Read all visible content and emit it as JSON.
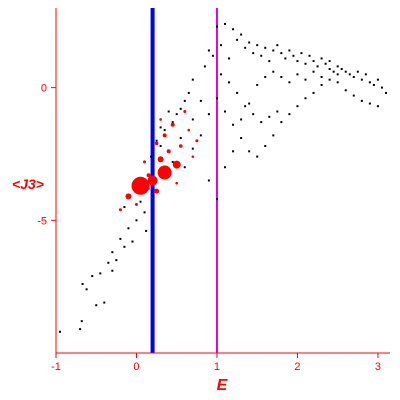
{
  "chart_data": {
    "type": "scatter",
    "title": "",
    "xlabel": "E",
    "ylabel": "<J3>",
    "xlim": [
      -1.0,
      3.15
    ],
    "ylim": [
      -10.0,
      3.0
    ],
    "xticks": [
      -1,
      0,
      1,
      2,
      3
    ],
    "yticks": [
      -5,
      0
    ],
    "vlines": [
      {
        "x": 0.2,
        "color": "#0000ff"
      },
      {
        "x": 1.0,
        "color": "#e000e0"
      }
    ],
    "series": [
      {
        "color": "#000000",
        "marker": "dot",
        "points": [
          [
            -0.95,
            -9.2
          ],
          [
            -0.7,
            -9.1
          ],
          [
            -0.68,
            -8.8
          ],
          [
            -0.67,
            -7.4
          ],
          [
            -0.62,
            -7.6
          ],
          [
            -0.55,
            -7.1
          ],
          [
            -0.5,
            -8.2
          ],
          [
            -0.45,
            -7.0
          ],
          [
            -0.4,
            -8.1
          ],
          [
            -0.35,
            -6.6
          ],
          [
            -0.3,
            -6.9
          ],
          [
            -0.3,
            -6.2
          ],
          [
            -0.25,
            -6.5
          ],
          [
            -0.2,
            -5.7
          ],
          [
            -0.15,
            -6.0
          ],
          [
            -0.15,
            -4.5
          ],
          [
            -0.1,
            -5.3
          ],
          [
            -0.05,
            -5.8
          ],
          [
            0.0,
            -5.0
          ],
          [
            0.05,
            -4.3
          ],
          [
            0.1,
            -4.7
          ],
          [
            0.12,
            -5.4
          ],
          [
            0.15,
            -3.8
          ],
          [
            0.18,
            -2.6
          ],
          [
            0.25,
            -2.0
          ],
          [
            0.3,
            -1.5
          ],
          [
            0.35,
            -1.6
          ],
          [
            0.4,
            -0.9
          ],
          [
            0.45,
            -1.3
          ],
          [
            0.5,
            -1.0
          ],
          [
            0.55,
            -0.8
          ],
          [
            0.6,
            -0.5
          ],
          [
            0.65,
            -0.2
          ],
          [
            0.7,
            0.3
          ],
          [
            0.8,
            -0.5
          ],
          [
            0.85,
            0.8
          ],
          [
            0.9,
            1.4
          ],
          [
            0.95,
            1.2
          ],
          [
            1.0,
            2.3
          ],
          [
            1.05,
            1.6
          ],
          [
            1.1,
            2.4
          ],
          [
            1.15,
            1.1
          ],
          [
            1.2,
            2.2
          ],
          [
            1.25,
            1.8
          ],
          [
            1.3,
            2.0
          ],
          [
            1.35,
            1.5
          ],
          [
            1.4,
            1.7
          ],
          [
            1.45,
            1.3
          ],
          [
            1.5,
            1.6
          ],
          [
            1.55,
            1.2
          ],
          [
            1.6,
            1.5
          ],
          [
            1.65,
            1.0
          ],
          [
            1.7,
            1.4
          ],
          [
            1.75,
            1.6
          ],
          [
            1.8,
            1.3
          ],
          [
            1.85,
            1.1
          ],
          [
            1.9,
            1.4
          ],
          [
            1.95,
            1.2
          ],
          [
            2.0,
            1.0
          ],
          [
            2.05,
            1.3
          ],
          [
            2.1,
            0.9
          ],
          [
            2.15,
            1.2
          ],
          [
            2.2,
            1.0
          ],
          [
            2.25,
            0.8
          ],
          [
            2.3,
            1.1
          ],
          [
            2.35,
            0.9
          ],
          [
            2.4,
            1.0
          ],
          [
            2.45,
            0.6
          ],
          [
            2.5,
            0.8
          ],
          [
            2.55,
            0.7
          ],
          [
            2.6,
            0.6
          ],
          [
            2.65,
            0.5
          ],
          [
            2.7,
            0.4
          ],
          [
            2.75,
            0.6
          ],
          [
            2.8,
            0.3
          ],
          [
            2.85,
            0.5
          ],
          [
            2.9,
            0.2
          ],
          [
            2.95,
            0.1
          ],
          [
            3.0,
            0.3
          ],
          [
            3.05,
            0.0
          ],
          [
            3.1,
            -0.2
          ],
          [
            1.0,
            -0.4
          ],
          [
            1.1,
            -0.9
          ],
          [
            1.2,
            -1.4
          ],
          [
            1.3,
            -1.9
          ],
          [
            1.4,
            -2.4
          ],
          [
            1.5,
            -2.6
          ],
          [
            1.6,
            -2.2
          ],
          [
            1.7,
            -1.8
          ],
          [
            1.8,
            -1.3
          ],
          [
            1.9,
            -1.0
          ],
          [
            2.0,
            -0.7
          ],
          [
            2.1,
            -0.4
          ],
          [
            2.2,
            -0.2
          ],
          [
            2.3,
            0.1
          ],
          [
            2.4,
            0.3
          ],
          [
            2.5,
            0.2
          ],
          [
            2.6,
            -0.1
          ],
          [
            2.7,
            -0.3
          ],
          [
            2.8,
            -0.5
          ],
          [
            2.9,
            -0.6
          ],
          [
            3.0,
            -0.7
          ],
          [
            0.9,
            -3.5
          ],
          [
            1.0,
            -4.2
          ],
          [
            1.1,
            -3.0
          ],
          [
            1.2,
            -2.4
          ],
          [
            1.3,
            -1.2
          ],
          [
            1.4,
            -0.6
          ],
          [
            1.5,
            0.1
          ],
          [
            1.6,
            0.4
          ],
          [
            1.7,
            0.6
          ],
          [
            1.8,
            0.4
          ],
          [
            1.9,
            0.2
          ],
          [
            2.0,
            0.5
          ],
          [
            2.1,
            0.3
          ],
          [
            2.2,
            0.6
          ],
          [
            2.3,
            0.4
          ],
          [
            2.4,
            0.7
          ],
          [
            2.5,
            0.5
          ],
          [
            0.6,
            -3.0
          ],
          [
            0.7,
            -2.3
          ],
          [
            0.8,
            -1.8
          ],
          [
            0.9,
            -1.0
          ],
          [
            0.3,
            -2.2
          ],
          [
            0.45,
            -2.8
          ],
          [
            0.55,
            -1.9
          ],
          [
            0.7,
            -1.2
          ],
          [
            1.05,
            0.5
          ],
          [
            1.15,
            0.2
          ],
          [
            1.25,
            -0.2
          ],
          [
            1.35,
            -0.7
          ],
          [
            1.45,
            -1.0
          ],
          [
            1.55,
            -1.3
          ],
          [
            1.65,
            -1.1
          ],
          [
            1.75,
            -0.9
          ]
        ]
      },
      {
        "color": "#ff0000",
        "marker": "circle",
        "points": [
          {
            "x": 0.05,
            "y": -3.7,
            "size": 9
          },
          {
            "x": 0.35,
            "y": -3.2,
            "size": 7
          },
          {
            "x": 0.2,
            "y": -3.5,
            "size": 5
          },
          {
            "x": 0.5,
            "y": -2.9,
            "size": 4
          },
          {
            "x": -0.1,
            "y": -4.1,
            "size": 3
          },
          {
            "x": 0.3,
            "y": -2.7,
            "size": 3
          },
          {
            "x": 0.25,
            "y": -3.9,
            "size": 2.5
          },
          {
            "x": 0.15,
            "y": -3.3,
            "size": 2
          },
          {
            "x": 0.4,
            "y": -2.4,
            "size": 2
          },
          {
            "x": 0.35,
            "y": -1.8,
            "size": 2
          },
          {
            "x": 0.45,
            "y": -1.4,
            "size": 2
          },
          {
            "x": 0.25,
            "y": -2.1,
            "size": 1.8
          },
          {
            "x": 0.55,
            "y": -2.2,
            "size": 1.8
          },
          {
            "x": 0.1,
            "y": -2.8,
            "size": 1.5
          },
          {
            "x": 0.6,
            "y": -0.9,
            "size": 1.5
          },
          {
            "x": 0.75,
            "y": -2.0,
            "size": 1.5
          },
          {
            "x": -0.2,
            "y": -4.6,
            "size": 1.5
          },
          {
            "x": 0.0,
            "y": -4.4,
            "size": 1.5
          },
          {
            "x": 0.65,
            "y": -1.6,
            "size": 1.3
          },
          {
            "x": 0.3,
            "y": -1.2,
            "size": 1.3
          },
          {
            "x": 0.5,
            "y": -3.6,
            "size": 1.3
          },
          {
            "x": 0.7,
            "y": -2.6,
            "size": 1.3
          }
        ]
      }
    ],
    "colors": {
      "axis": "#ff0000",
      "label": "#ff0000"
    }
  }
}
